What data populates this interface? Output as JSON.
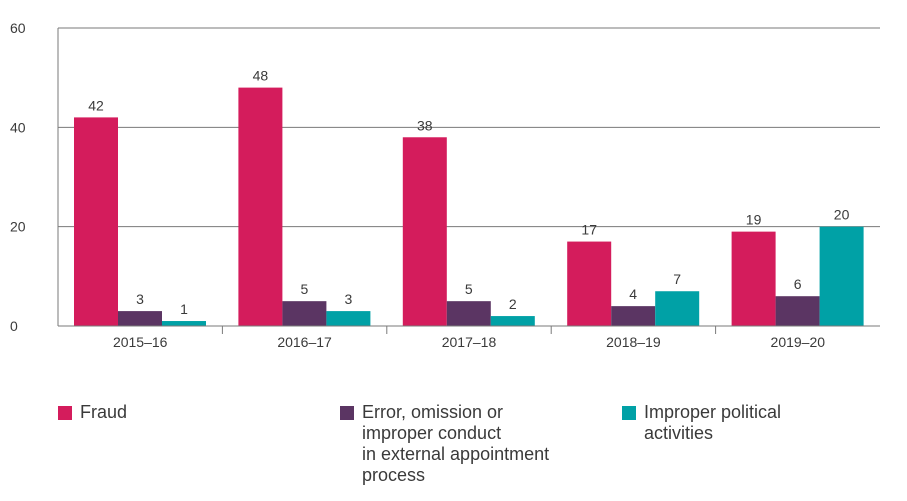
{
  "chart_data": {
    "type": "bar",
    "categories": [
      "2015–16",
      "2016–17",
      "2017–18",
      "2018–19",
      "2019–20"
    ],
    "series": [
      {
        "name": "Fraud",
        "values": [
          42,
          48,
          38,
          17,
          19
        ],
        "color": "#d41c5c"
      },
      {
        "name": "Error, omission or improper conduct in external appointment process",
        "values": [
          3,
          5,
          5,
          4,
          6
        ],
        "color": "#5b3563"
      },
      {
        "name": "Improper political activities",
        "values": [
          1,
          3,
          2,
          7,
          20
        ],
        "color": "#00a1a6"
      }
    ],
    "yticks": [
      0,
      20,
      40,
      60
    ],
    "ylim": [
      0,
      60
    ],
    "grid": true,
    "legend_position": "bottom"
  },
  "legend": {
    "items": [
      {
        "label": "Fraud",
        "color": "#d41c5c"
      },
      {
        "label": "Error, omission or\nimproper conduct\nin external appointment\nprocess",
        "color": "#5b3563"
      },
      {
        "label": "Improper political\nactivities",
        "color": "#00a1a6"
      }
    ]
  }
}
